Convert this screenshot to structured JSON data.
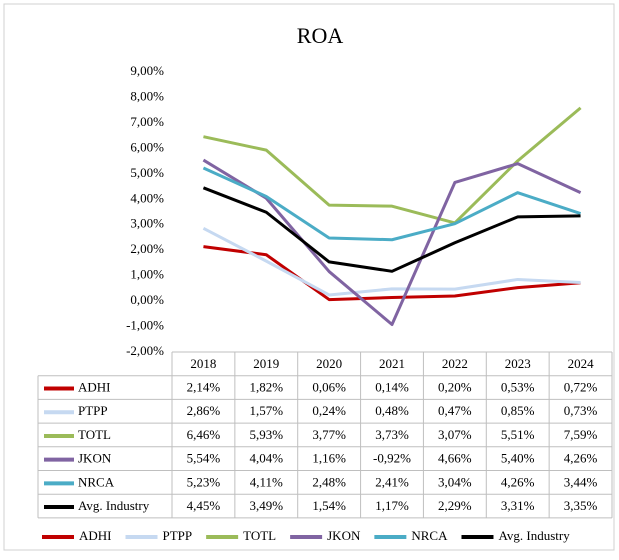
{
  "chart_data": {
    "type": "line",
    "title": "ROA",
    "categories": [
      "2018",
      "2019",
      "2020",
      "2021",
      "2022",
      "2023",
      "2024"
    ],
    "ylim": [
      -2,
      9
    ],
    "yticks": [
      {
        "value": -2,
        "label": "-2,00%"
      },
      {
        "value": -1,
        "label": "-1,00%"
      },
      {
        "value": 0,
        "label": "0,00%"
      },
      {
        "value": 1,
        "label": "1,00%"
      },
      {
        "value": 2,
        "label": "2,00%"
      },
      {
        "value": 3,
        "label": "3,00%"
      },
      {
        "value": 4,
        "label": "4,00%"
      },
      {
        "value": 5,
        "label": "5,00%"
      },
      {
        "value": 6,
        "label": "6,00%"
      },
      {
        "value": 7,
        "label": "7,00%"
      },
      {
        "value": 8,
        "label": "8,00%"
      },
      {
        "value": 9,
        "label": "9,00%"
      }
    ],
    "grid": false,
    "series": [
      {
        "name": "ADHI",
        "color": "#c00000",
        "values": [
          2.14,
          1.82,
          0.06,
          0.14,
          0.2,
          0.53,
          0.72
        ],
        "value_labels": [
          "2,14%",
          "1,82%",
          "0,06%",
          "0,14%",
          "0,20%",
          "0,53%",
          "0,72%"
        ]
      },
      {
        "name": "PTPP",
        "color": "#c6d9f1",
        "values": [
          2.86,
          1.57,
          0.24,
          0.48,
          0.47,
          0.85,
          0.73
        ],
        "value_labels": [
          "2,86%",
          "1,57%",
          "0,24%",
          "0,48%",
          "0,47%",
          "0,85%",
          "0,73%"
        ]
      },
      {
        "name": "TOTL",
        "color": "#9bbb59",
        "values": [
          6.46,
          5.93,
          3.77,
          3.73,
          3.07,
          5.51,
          7.59
        ],
        "value_labels": [
          "6,46%",
          "5,93%",
          "3,77%",
          "3,73%",
          "3,07%",
          "5,51%",
          "7,59%"
        ]
      },
      {
        "name": "JKON",
        "color": "#8064a2",
        "values": [
          5.54,
          4.04,
          1.16,
          -0.92,
          4.66,
          5.4,
          4.26
        ],
        "value_labels": [
          "5,54%",
          "4,04%",
          "1,16%",
          "-0,92%",
          "4,66%",
          "5,40%",
          "4,26%"
        ]
      },
      {
        "name": "NRCA",
        "color": "#4bacc6",
        "values": [
          5.23,
          4.11,
          2.48,
          2.41,
          3.04,
          4.26,
          3.44
        ],
        "value_labels": [
          "5,23%",
          "4,11%",
          "2,48%",
          "2,41%",
          "3,04%",
          "4,26%",
          "3,44%"
        ]
      },
      {
        "name": "Avg. Industry",
        "color": "#000000",
        "values": [
          4.45,
          3.49,
          1.54,
          1.17,
          2.29,
          3.31,
          3.35
        ],
        "value_labels": [
          "4,45%",
          "3,49%",
          "1,54%",
          "1,17%",
          "2,29%",
          "3,31%",
          "3,35%"
        ]
      }
    ]
  }
}
